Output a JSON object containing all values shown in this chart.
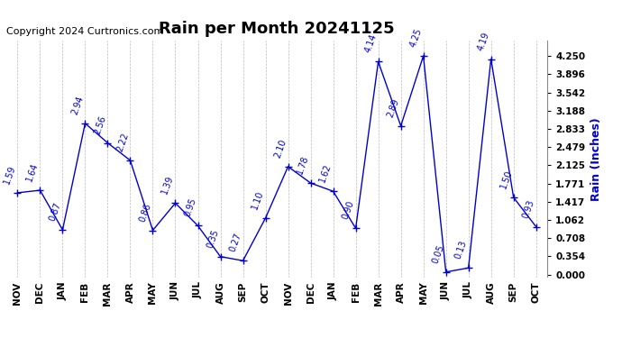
{
  "title": "Rain per Month 20241125",
  "copyright": "Copyright 2024 Curtronics.com",
  "ylabel": "Rain (Inches)",
  "months": [
    "NOV",
    "DEC",
    "JAN",
    "FEB",
    "MAR",
    "APR",
    "MAY",
    "JUN",
    "JUL",
    "AUG",
    "SEP",
    "OCT",
    "NOV",
    "DEC",
    "JAN",
    "FEB",
    "MAR",
    "APR",
    "MAY",
    "JUN",
    "JUL",
    "AUG",
    "SEP",
    "OCT"
  ],
  "values": [
    1.59,
    1.64,
    0.87,
    2.94,
    2.56,
    2.22,
    0.86,
    1.39,
    0.95,
    0.35,
    0.27,
    1.1,
    2.1,
    1.78,
    1.62,
    0.9,
    4.14,
    2.89,
    4.25,
    0.05,
    0.13,
    4.19,
    1.5,
    0.93
  ],
  "line_color": "#0000cc",
  "marker": "+",
  "marker_color": "#0000cc",
  "marker_size": 6,
  "label_color": "#0000cc",
  "label_fontsize": 7,
  "title_fontsize": 13,
  "copyright_fontsize": 8,
  "ylabel_fontsize": 9,
  "yticks": [
    0.0,
    0.354,
    0.708,
    1.062,
    1.417,
    1.771,
    2.125,
    2.479,
    2.833,
    3.188,
    3.542,
    3.896,
    4.25
  ],
  "ylim": [
    -0.05,
    4.55
  ],
  "grid_color": "#aaaaaa",
  "background_color": "#ffffff",
  "label_rotation": 70
}
